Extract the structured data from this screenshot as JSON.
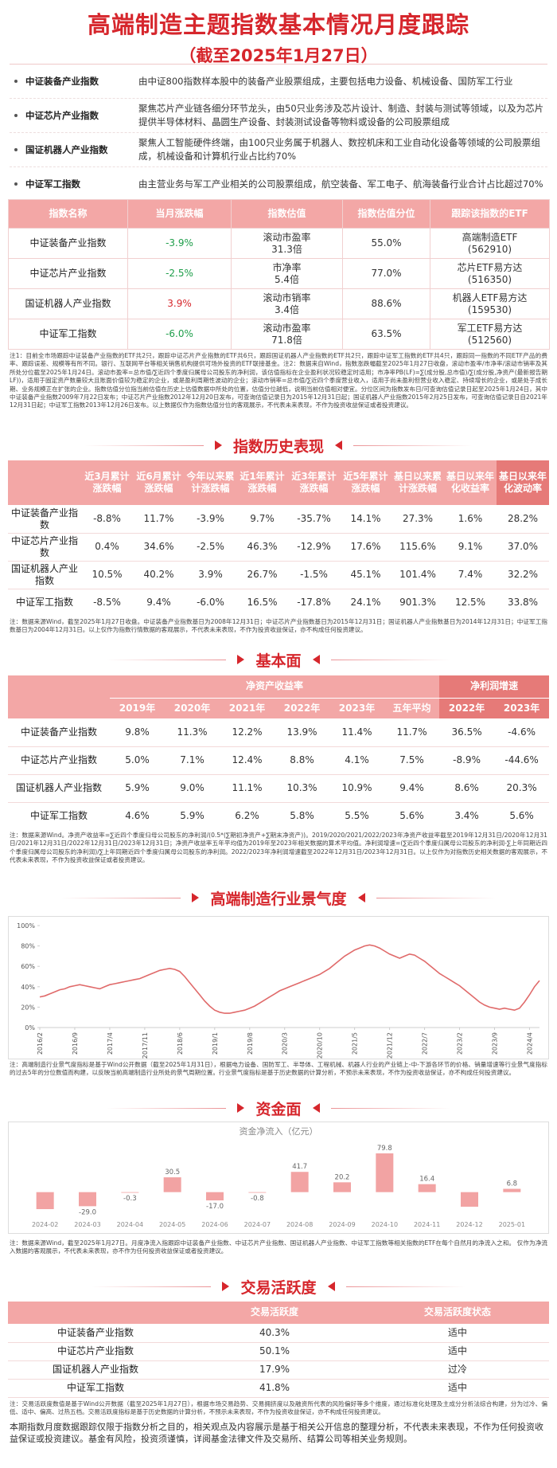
{
  "header": {
    "title": "高端制造主题指数基本情况月度跟踪",
    "subtitle": "（截至2025年1月27日）"
  },
  "index_list": [
    {
      "name": "中证装备产业指数",
      "desc": "由中证800指数样本股中的装备产业股票组成，主要包括电力设备、机械设备、国防军工行业"
    },
    {
      "name": "中证芯片产业指数",
      "desc": "聚焦芯片产业链各细分环节龙头，由50只业务涉及芯片设计、制造、封装与测试等领域，以及为芯片提供半导体材料、晶圆生产设备、封装测试设备等物料或设备的公司股票组成"
    },
    {
      "name": "国证机器人产业指数",
      "desc": "聚焦人工智能硬件终端，由100只业务属于机器人、数控机床和工业自动化设备等领域的公司股票组成，机械设备和计算机行业占比约70%"
    },
    {
      "name": "中证军工指数",
      "desc": "由主营业务与军工产业相关的公司股票组成，航空装备、军工电子、航海装备行业合计占比超过70%"
    }
  ],
  "overview": {
    "columns": [
      "指数名称",
      "当月涨跌幅",
      "指数估值",
      "指数估值分位",
      "跟踪该指数的ETF"
    ],
    "rows": [
      [
        "中证装备产业指数",
        "-3.9%",
        [
          "滚动市盈率",
          "31.3倍"
        ],
        "55.0%",
        [
          "高端制造ETF",
          "(562910)"
        ]
      ],
      [
        "中证芯片产业指数",
        "-2.5%",
        [
          "市净率",
          "5.4倍"
        ],
        "77.0%",
        [
          "芯片ETF易方达",
          "(516350)"
        ]
      ],
      [
        "国证机器人产业指数",
        "3.9%",
        [
          "滚动市销率",
          "3.4倍"
        ],
        "88.6%",
        [
          "机器人ETF易方达",
          "(159530)"
        ]
      ],
      [
        "中证军工指数",
        "-6.0%",
        [
          "滚动市盈率",
          "71.8倍"
        ],
        "63.5%",
        [
          "军工ETF易方达",
          "(512560)"
        ]
      ]
    ],
    "note": "注1：目前全市场跟踪中证装备产业指数的ETF共2只，跟踪中证芯片产业指数的ETF共6只，跟踪国证机器人产业指数的ETF共2只，跟踪中证军工指数的ETF共4只，跟踪同一指数的不同ETF产品的费率、跟踪误差、规模等有所不同。银行、互联网平台等相关销售机构提供可场外投资的ETF联接基金。注2：数据来自Wind，指数涨跌幅截至2025年1月27日收盘，滚动市盈率/市净率/滚动市销率及其所处分位截至2025年1月24日。滚动市盈率=总市值/∑近四个季度归属母公司股东的净利润，该估值指标在企业盈利状况较稳定时适用；市净率PB(LF)=∑(成分股,总市值)/∑(成分股,净资产(最新报告期LF))，适用于固定资产数量较大且账面价值较为稳定的企业，或是盈利周期性波动的企业；滚动市销率=总市值/∑近四个季度营业收入，适用于尚未盈利但营业收入稳定、持续增长的企业，或是处于成长期、业务规模正在扩张的企业。指数估值分位指当前估值在历史上估值数据中所处的位置，估值分位越低，说明当前估值相对便宜。分位区间为指数发布日/可查询估值记录日起至2025年1月24日，其中中证装备产业指数2009年7月22日发布；中证芯片产业指数2012年12月20日发布，可查询估值记录日为2015年12月31日起；国证机器人产业指数2015年2月25日发布，可查询估值记录日自2021年12月31日起；中证军工指数2013年12月26日发布。以上数据仅作为指数估值分位的客观展示，不代表未来表现，不作为投资收益保证或者投资建议。"
  },
  "history": {
    "heading": "指数历史表现",
    "columns": [
      "近3月累计涨跌幅",
      "近6月累计涨跌幅",
      "今年以来累计涨跌幅",
      "近1年累计涨跌幅",
      "近3年累计涨跌幅",
      "近5年累计涨跌幅",
      "基日以来累计涨跌幅",
      "基日以来年化收益率",
      "基日以来年化波动率"
    ],
    "rows": [
      [
        "中证装备产业指数",
        "-8.8%",
        "11.7%",
        "-3.9%",
        "9.7%",
        "-35.7%",
        "14.1%",
        "27.3%",
        "1.6%",
        "28.2%"
      ],
      [
        "中证芯片产业指数",
        "0.4%",
        "34.6%",
        "-2.5%",
        "46.3%",
        "-12.9%",
        "17.6%",
        "115.6%",
        "9.1%",
        "37.0%"
      ],
      [
        "国证机器人产业指数",
        "10.5%",
        "40.2%",
        "3.9%",
        "26.7%",
        "-1.5%",
        "45.1%",
        "101.4%",
        "7.4%",
        "32.2%"
      ],
      [
        "中证军工指数",
        "-8.5%",
        "9.4%",
        "-6.0%",
        "16.5%",
        "-17.8%",
        "24.1%",
        "901.3%",
        "12.5%",
        "33.8%"
      ]
    ],
    "note": "注：数据来源Wind，截至2025年1月27日收盘。中证装备产业指数基日为2008年12月31日；中证芯片产业指数基日为2015年12月31日；国证机器人产业指数基日为2014年12月31日；中证军工指数基日为2004年12月31日。以上仅作为指数行情数据的客观展示，不代表未来表现，不作为投资收益保证，亦不构成任何投资建议。"
  },
  "fundamentals": {
    "heading": "基本面",
    "groups": [
      {
        "label": "净资产收益率",
        "columns": [
          "2019年",
          "2020年",
          "2021年",
          "2022年",
          "2023年",
          "五年平均"
        ]
      },
      {
        "label": "净利润增速",
        "columns": [
          "2022年",
          "2023年"
        ]
      }
    ],
    "rows": [
      [
        "中证装备产业指数",
        "9.8%",
        "11.3%",
        "12.2%",
        "13.9%",
        "11.4%",
        "11.7%",
        "36.5%",
        "-4.6%"
      ],
      [
        "中证芯片产业指数",
        "5.0%",
        "7.1%",
        "12.4%",
        "8.8%",
        "4.1%",
        "7.5%",
        "-8.9%",
        "-44.6%"
      ],
      [
        "国证机器人产业指数",
        "5.9%",
        "9.0%",
        "11.1%",
        "10.3%",
        "10.9%",
        "9.4%",
        "8.6%",
        "20.3%"
      ],
      [
        "中证军工指数",
        "4.6%",
        "5.9%",
        "6.2%",
        "5.8%",
        "5.5%",
        "5.6%",
        "3.4%",
        "5.6%"
      ]
    ],
    "note": "注：数据来源Wind。净资产收益率=∑近四个季度归母公司股东的净利润/(0.5*(∑期初净资产+∑期末净资产))。2019/2020/2021/2022/2023年净资产收益率截至2019年12月31日/2020年12月31日/2021年12月31日/2022年12月31日/2023年12月31日；净资产收益率五年平均值为2019年至2023年相关数据的算术平均值。净利润增速=(∑近四个季度归属母公司股东的净利润-∑上年同期近四个季度归属母公司股东的净利润)/∑上年同期近四个季度归属母公司股东的净利润。2022/2023年净利润增速截至2022年12月31日/2023年12月31日。以上仅作为对指数历史相关数据的客观展示，不代表未来表现，不作为投资收益保证或者投资建议。"
  },
  "sentiment": {
    "heading": "高端制造行业景气度",
    "chart": {
      "type": "line",
      "color": "#e06a6a",
      "categories": [
        "2016/2",
        null,
        null,
        null,
        null,
        null,
        null,
        "2016/9",
        null,
        null,
        null,
        null,
        null,
        null,
        "2017/4",
        null,
        null,
        null,
        null,
        null,
        null,
        "2017/11",
        null,
        null,
        null,
        null,
        null,
        null,
        "2018/6",
        null,
        null,
        null,
        null,
        null,
        null,
        "2019/1",
        null,
        null,
        null,
        null,
        null,
        null,
        "2019/8",
        null,
        null,
        null,
        null,
        null,
        null,
        "2020/3",
        null,
        null,
        null,
        null,
        null,
        null,
        "2020/10",
        null,
        null,
        null,
        null,
        null,
        null,
        "2021/5",
        null,
        null,
        null,
        null,
        null,
        null,
        "2021/12",
        null,
        null,
        null,
        null,
        null,
        null,
        "2022/7",
        null,
        null,
        null,
        null,
        null,
        null,
        "2023/2",
        null,
        null,
        null,
        null,
        null,
        null,
        "2023/9",
        null,
        null,
        null,
        null,
        null,
        null,
        "2024/4",
        null,
        null
      ],
      "values": [
        30,
        31,
        33,
        35,
        37,
        38,
        40,
        41,
        42,
        41,
        40,
        39,
        38,
        40,
        42,
        43,
        44,
        45,
        46,
        47,
        48,
        50,
        52,
        54,
        56,
        57,
        58,
        57,
        55,
        50,
        44,
        38,
        32,
        26,
        21,
        17,
        15,
        14,
        14,
        15,
        16,
        17,
        19,
        21,
        24,
        27,
        30,
        33,
        36,
        38,
        40,
        42,
        44,
        46,
        48,
        50,
        52,
        55,
        58,
        62,
        66,
        70,
        73,
        76,
        78,
        80,
        81,
        80,
        78,
        75,
        72,
        70,
        68,
        70,
        72,
        71,
        68,
        65,
        61,
        57,
        53,
        50,
        47,
        44,
        41,
        37,
        33,
        29,
        25,
        22,
        20,
        19,
        18,
        19,
        18,
        17,
        19,
        25,
        32,
        40,
        46
      ],
      "ylim": [
        0,
        100
      ],
      "yticks": [
        {
          "value": 0,
          "label": "0%"
        },
        {
          "value": 20,
          "label": "20%"
        },
        {
          "value": 40,
          "label": "40%"
        },
        {
          "value": 60,
          "label": "60%"
        },
        {
          "value": 80,
          "label": "80%"
        },
        {
          "value": 100,
          "label": "100%"
        }
      ],
      "grid": false
    },
    "note": "注：高端制造行业景气度指标是基于Wind公开数据（截至2025年1月31日），根据电力设备、国防军工、半导体、工程机械、机器人行业的产业链上-中-下游各环节的价格、销量增速等行业景气度指标的过去5年的分位数值而构建，以反映当前高端制造行业所处的景气周期位置。行业景气度指标是基于历史数据的计算分析，不预示未来表现，不作为投资收益保证，亦不构成任何投资建议。"
  },
  "fund_flow": {
    "heading": "资金面",
    "chart": {
      "type": "bar",
      "title": "资金净流入（亿元）",
      "color": "#f2a3a3",
      "categories": [
        "2024-02",
        "2024-03",
        "2024-04",
        "2024-05",
        "2024-06",
        "2024-07",
        "2024-08",
        "2024-09",
        "2024-10",
        "2024-11",
        "2024-12",
        "2025-01"
      ],
      "values": [
        -35,
        -29.0,
        -0.3,
        30.5,
        -17.0,
        -0.8,
        41.7,
        20.2,
        79.8,
        16.4,
        -30,
        6.8
      ],
      "value_labels": [
        null,
        "-29.0",
        "-0.3",
        "30.5",
        "-17.0",
        "-0.8",
        "41.7",
        "20.2",
        "79.8",
        "16.4",
        null,
        "6.8"
      ]
    },
    "note": "注：数据来源Wind，截至2025年1月27日。月度净流入指跟踪中证装备产业指数、中证芯片产业指数、国证机器人产业指数、中证军工指数等相关指数的ETF在每个自然月的净流入之和。 仅作为净流入数据的客观展示，不代表未来表现，亦不作为任何投资收益保证或者投资建议。"
  },
  "activity": {
    "heading": "交易活跃度",
    "columns": [
      "交易活跃度",
      "交易活跃度状态"
    ],
    "rows": [
      [
        "中证装备产业指数",
        "40.3%",
        "适中"
      ],
      [
        "中证芯片产业指数",
        "50.1%",
        "适中"
      ],
      [
        "国证机器人产业指数",
        "17.9%",
        "过冷"
      ],
      [
        "中证军工指数",
        "41.8%",
        "适中"
      ]
    ],
    "note": "注：交易活跃度数值是基于Wind公开数据（截至2025年1月27日），根据市场交易趋势、交易拥挤度以及融资所代表的风险偏好等多个维度，通过标准化处理及主成分分析法综合构建，分为过冷、偏低、适中、偏高、过热五档。交易活跃度指标是基于历史数据的计算分析，不预示未来表现，不作为投资收益保证，亦不构成任何投资建议。"
  },
  "disclaimer": "本期指数月度数据跟踪仅限于指数分析之目的，相关观点及内容展示是基于相关公开信息的整理分析，不代表未来表现，不作为任何投资收益保证或投资建议。基金有风险，投资须谨慎，详阅基金法律文件及交易所、结算公司等相关业务规则。"
}
